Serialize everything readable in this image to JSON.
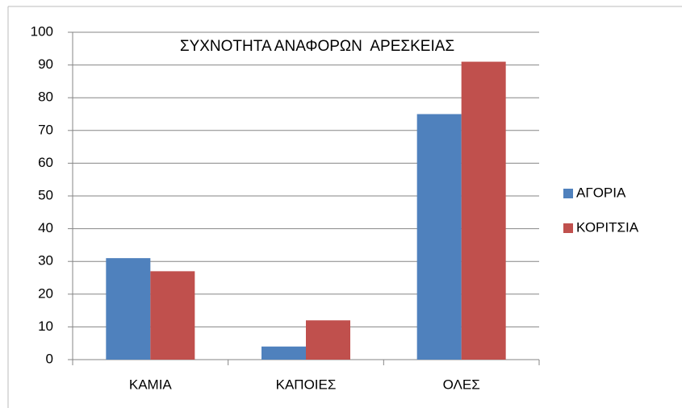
{
  "chart_data": {
    "type": "bar",
    "title": "ΣΥΧΝΟΤΗΤΑ ΑΝΑΦΟΡΩΝ  ΑΡΕΣΚΕΙΑΣ",
    "categories": [
      "ΚΑΜΙΑ",
      "ΚΑΠΟΙΕΣ",
      "ΟΛΕΣ"
    ],
    "series": [
      {
        "name": "ΑΓΟΡΙΑ",
        "color": "#4f81bd",
        "values": [
          31,
          4,
          75
        ]
      },
      {
        "name": "ΚΟΡΙΤΣΙΑ",
        "color": "#c0504d",
        "values": [
          27,
          12,
          91
        ]
      }
    ],
    "ylim": [
      0,
      100
    ],
    "yticks": [
      0,
      10,
      20,
      30,
      40,
      50,
      60,
      70,
      80,
      90,
      100
    ],
    "grid": true,
    "legend": "right"
  }
}
